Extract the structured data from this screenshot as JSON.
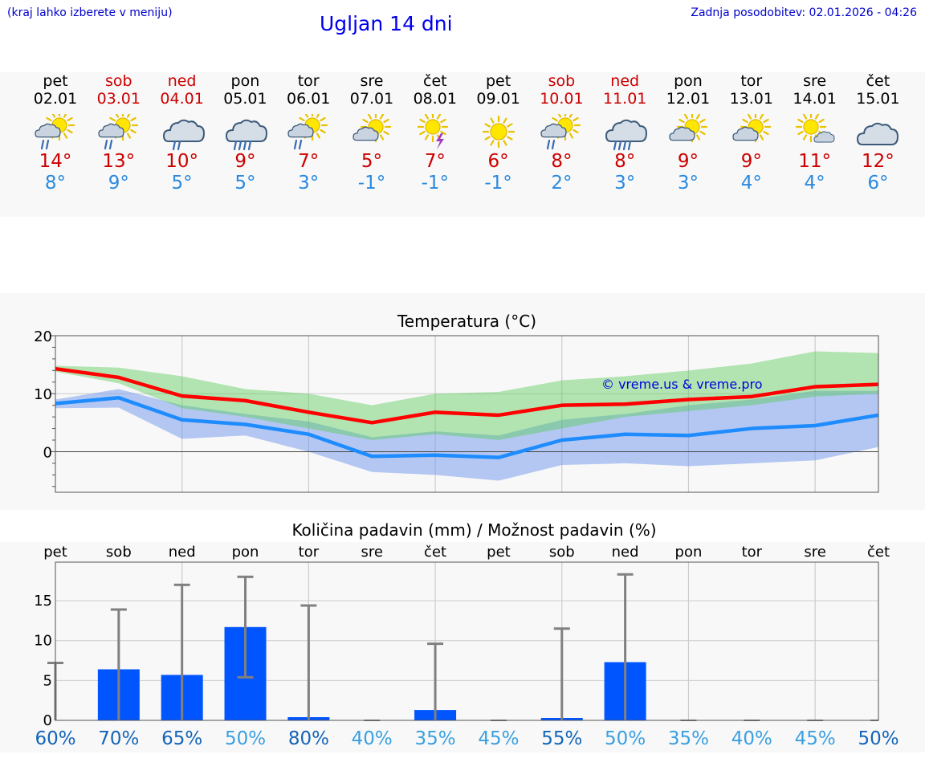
{
  "header": {
    "hint": "(kraj lahko izberete v meniju)",
    "title": "Ugljan 14 dni",
    "updated": "Zadnja posodobitev: 02.01.2026 - 04:26"
  },
  "colors": {
    "max": "#cc0000",
    "min": "#2a8adf",
    "weekend": "#cc0000",
    "bar": "#0055ff"
  },
  "days": [
    {
      "name": "pet",
      "date": "02.01",
      "weekend": false,
      "icon": "sun-cloud-rain-icon",
      "tmax": "14°",
      "tmin": "8°"
    },
    {
      "name": "sob",
      "date": "03.01",
      "weekend": true,
      "icon": "sun-cloud-rain-icon",
      "tmax": "13°",
      "tmin": "9°"
    },
    {
      "name": "ned",
      "date": "04.01",
      "weekend": true,
      "icon": "cloud-rain-icon",
      "tmax": "10°",
      "tmin": "5°"
    },
    {
      "name": "pon",
      "date": "05.01",
      "weekend": false,
      "icon": "cloud-heavy-rain-icon",
      "tmax": "9°",
      "tmin": "5°"
    },
    {
      "name": "tor",
      "date": "06.01",
      "weekend": false,
      "icon": "sun-cloud-rain-icon",
      "tmax": "7°",
      "tmin": "3°"
    },
    {
      "name": "sre",
      "date": "07.01",
      "weekend": false,
      "icon": "sun-cloud-icon",
      "tmax": "5°",
      "tmin": "-1°"
    },
    {
      "name": "čet",
      "date": "08.01",
      "weekend": false,
      "icon": "sun-thunder-icon",
      "tmax": "7°",
      "tmin": "-1°"
    },
    {
      "name": "pet",
      "date": "09.01",
      "weekend": false,
      "icon": "sun-icon",
      "tmax": "6°",
      "tmin": "-1°"
    },
    {
      "name": "sob",
      "date": "10.01",
      "weekend": true,
      "icon": "sun-cloud-rain-icon",
      "tmax": "8°",
      "tmin": "2°"
    },
    {
      "name": "ned",
      "date": "11.01",
      "weekend": true,
      "icon": "cloud-heavy-rain-icon",
      "tmax": "8°",
      "tmin": "3°"
    },
    {
      "name": "pon",
      "date": "12.01",
      "weekend": false,
      "icon": "sun-cloud-icon",
      "tmax": "9°",
      "tmin": "3°"
    },
    {
      "name": "tor",
      "date": "13.01",
      "weekend": false,
      "icon": "sun-cloud-icon",
      "tmax": "9°",
      "tmin": "4°"
    },
    {
      "name": "sre",
      "date": "14.01",
      "weekend": false,
      "icon": "sun-small-cloud-icon",
      "tmax": "11°",
      "tmin": "4°"
    },
    {
      "name": "čet",
      "date": "15.01",
      "weekend": false,
      "icon": "cloud-icon",
      "tmax": "12°",
      "tmin": "6°"
    }
  ],
  "chart_data": [
    {
      "type": "line",
      "title": "Temperatura (°C)",
      "watermark": "© vreme.us & vreme.pro",
      "ylim": [
        -7,
        20
      ],
      "yticks": [
        0,
        10,
        20
      ],
      "grid": true,
      "x_index": [
        0,
        1,
        2,
        3,
        4,
        5,
        6,
        7,
        8,
        9,
        10,
        11,
        12,
        13,
        14
      ],
      "series": [
        {
          "name": "max",
          "color": "#ff0000",
          "values": [
            14.3,
            12.8,
            9.6,
            8.8,
            6.8,
            5.0,
            6.8,
            6.3,
            8.0,
            8.2,
            9.0,
            9.5,
            11.2,
            11.6,
            11.6
          ]
        },
        {
          "name": "min",
          "color": "#1e8cff",
          "values": [
            8.3,
            9.3,
            5.5,
            4.7,
            3.0,
            -0.8,
            -0.6,
            -1.0,
            2.0,
            3.0,
            2.8,
            4.0,
            4.5,
            6.3,
            6.3
          ]
        },
        {
          "name": "max_range_low",
          "values": [
            13.8,
            11.8,
            7.5,
            6.0,
            4.0,
            2.0,
            3.0,
            2.0,
            4.0,
            6.0,
            7.0,
            8.0,
            9.5,
            10.0,
            10.0
          ]
        },
        {
          "name": "max_range_high",
          "values": [
            14.8,
            14.5,
            13.0,
            10.8,
            10.0,
            8.0,
            10.0,
            10.3,
            12.3,
            13.0,
            14.0,
            15.2,
            17.3,
            17.0,
            17.0
          ]
        },
        {
          "name": "min_range_low",
          "values": [
            7.5,
            7.6,
            2.2,
            2.8,
            0.0,
            -3.5,
            -4.0,
            -5.0,
            -2.3,
            -2.0,
            -2.5,
            -2.0,
            -1.5,
            0.8,
            0.8
          ]
        },
        {
          "name": "min_range_high",
          "values": [
            9.0,
            10.8,
            8.0,
            6.5,
            5.2,
            2.5,
            3.5,
            2.8,
            5.5,
            6.5,
            8.0,
            9.0,
            10.5,
            10.5,
            10.5
          ]
        }
      ]
    },
    {
      "type": "bar",
      "title": "Količina padavin (mm) / Možnost padavin (%)",
      "categories": [
        "pet",
        "sob",
        "ned",
        "pon",
        "tor",
        "sre",
        "čet",
        "pet",
        "sob",
        "ned",
        "pon",
        "tor",
        "sre",
        "čet"
      ],
      "ylim": [
        0,
        20
      ],
      "yticks": [
        0,
        5,
        10,
        15
      ],
      "values": [
        0,
        6.4,
        5.7,
        11.7,
        0.4,
        0,
        1.3,
        0,
        0.3,
        7.3,
        0,
        0,
        0,
        0
      ],
      "error_high": [
        7.2,
        13.9,
        17.0,
        18.0,
        14.4,
        0,
        9.6,
        0,
        11.5,
        18.3,
        0,
        0,
        0,
        0
      ],
      "error_low": [
        0,
        0,
        0,
        5.4,
        0,
        0,
        0,
        0,
        0,
        0,
        0,
        0,
        0,
        0
      ],
      "probability": [
        "60%",
        "70%",
        "65%",
        "50%",
        "80%",
        "40%",
        "35%",
        "45%",
        "55%",
        "50%",
        "35%",
        "40%",
        "45%",
        "50%"
      ],
      "probability_colors": [
        "#1565b8",
        "#1565b8",
        "#1565b8",
        "#3aa0e0",
        "#1565b8",
        "#3aa0e0",
        "#3aa0e0",
        "#3aa0e0",
        "#1565b8",
        "#3aa0e0",
        "#3aa0e0",
        "#3aa0e0",
        "#3aa0e0",
        "#1565b8"
      ]
    }
  ]
}
